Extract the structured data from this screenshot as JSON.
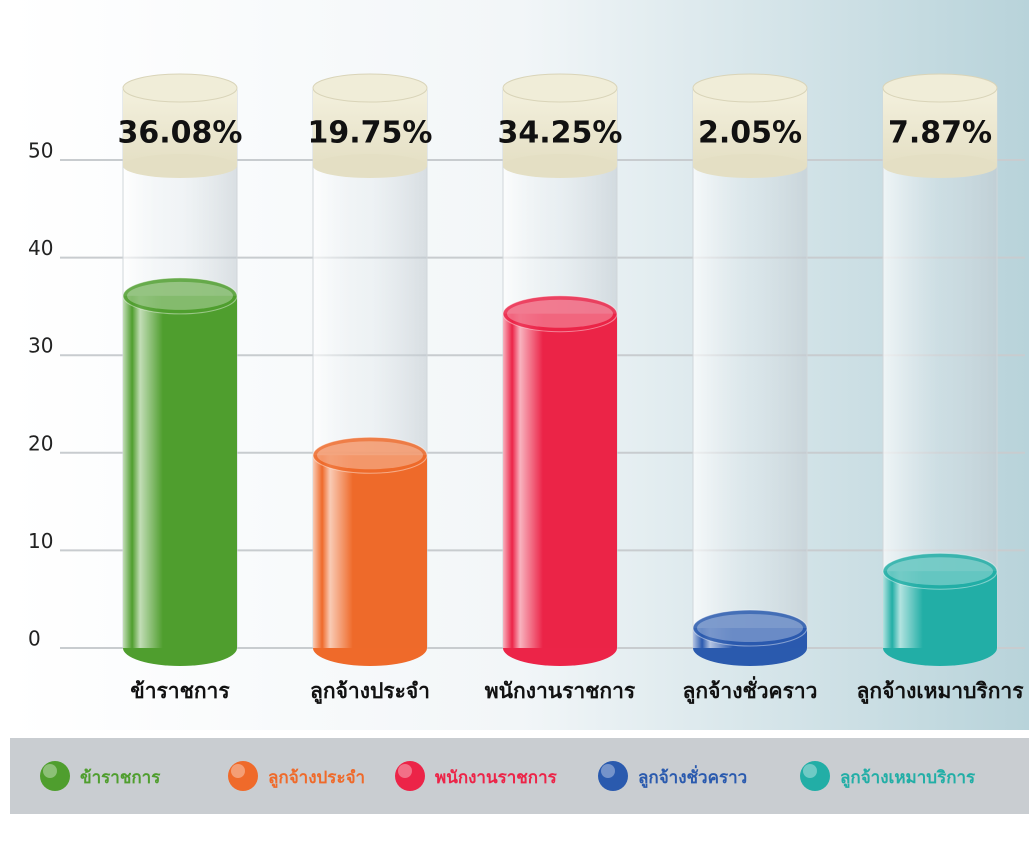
{
  "chart_data": {
    "type": "bar",
    "categories": [
      "ข้าราชการ",
      "ลูกจ้างประจำ",
      "พนักงานราชการ",
      "ลูกจ้างชั่วคราว",
      "ลูกจ้างเหมาบริการ"
    ],
    "values": [
      36.08,
      19.75,
      34.25,
      2.05,
      7.87
    ],
    "value_labels": [
      "36.08%",
      "19.75%",
      "34.25%",
      "2.05%",
      "7.87%"
    ],
    "colors": [
      "#4f9e2e",
      "#ef6a2a",
      "#ec2448",
      "#2a5aae",
      "#22aea6"
    ],
    "ylim": [
      0,
      50
    ],
    "yticks": [
      0,
      10,
      20,
      30,
      40,
      50
    ],
    "grid": true,
    "legend": "bottom"
  }
}
